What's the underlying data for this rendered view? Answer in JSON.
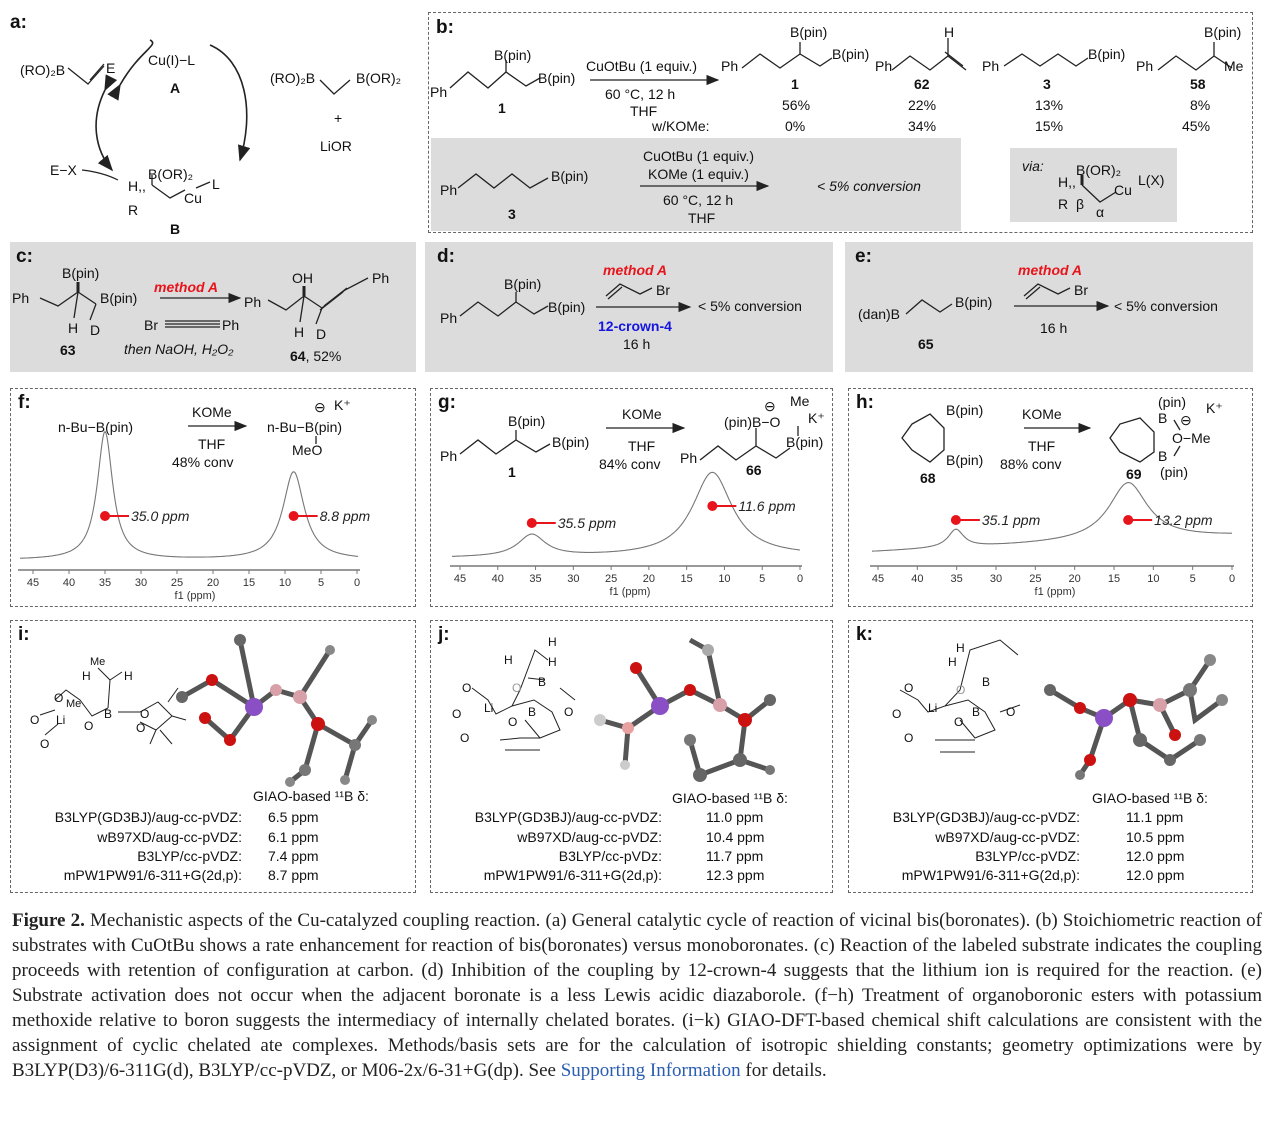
{
  "figure": {
    "panel_a": {
      "label": "a:",
      "t": [
        "(RO)₂B",
        "E",
        "Cu(I)−L",
        "A",
        "(RO)₂B",
        "B(OR)₂",
        "+",
        "LiOR",
        "E−X",
        "B(OR)₂",
        "H,,",
        "Cu",
        "L",
        "R",
        "B"
      ]
    },
    "panel_b": {
      "label": "b:",
      "start": {
        "ph": "Ph",
        "bpin1": "B(pin)",
        "bpin2": "B(pin)",
        "num": "1"
      },
      "reagent": "CuOtBu (1 equiv.)",
      "cond1": "60 °C, 12 h",
      "cond2": "THF",
      "products": [
        {
          "ph": "Ph",
          "sub1": "B(pin)",
          "sub2": "B(pin)",
          "num": "1",
          "yield": "56%",
          "yield_komE": "0%"
        },
        {
          "ph": "Ph",
          "sub1": "H",
          "num": "62",
          "yield": "22%",
          "yield_komE": "34%"
        },
        {
          "ph": "Ph",
          "sub1": "B(pin)",
          "num": "3",
          "yield": "13%",
          "yield_komE": "15%"
        },
        {
          "ph": "Ph",
          "sub1": "B(pin)",
          "sub2": "Me",
          "num": "58",
          "yield": "8%",
          "yield_komE": "45%"
        }
      ],
      "komE_label": "w/KOMe:",
      "control": {
        "ph": "Ph",
        "bpin": "B(pin)",
        "num": "3",
        "r1": "CuOtBu (1 equiv.)",
        "r2": "KOMe (1 equiv.)",
        "c1": "60 °C, 12 h",
        "c2": "THF",
        "result": "< 5% conversion"
      },
      "via": {
        "label": "via:",
        "bor": "B(OR)₂",
        "h": "H,,",
        "cu": "Cu",
        "lx": "L(X)",
        "r": "R",
        "beta": "β",
        "alpha": "α"
      }
    },
    "panel_c": {
      "label": "c:",
      "t": [
        "B(pin)",
        "Ph",
        "B(pin)",
        "H",
        "D",
        "63",
        "method A",
        "Br",
        "Ph",
        "then NaOH, H₂O₂",
        "OH",
        "Ph",
        "Ph",
        "H",
        "D",
        "64",
        "52%"
      ]
    },
    "panel_d": {
      "label": "d:",
      "t": [
        "B(pin)",
        "B(pin)",
        "Ph",
        "method A",
        "Br",
        "12-crown-4",
        "16 h",
        "< 5% conversion"
      ]
    },
    "panel_e": {
      "label": "e:",
      "t": [
        "(dan)B",
        "B(pin)",
        "65",
        "method A",
        "Br",
        "16 h",
        "< 5% conversion"
      ]
    },
    "panel_f": {
      "label": "f:",
      "t": [
        "n-Bu−B(pin)",
        "KOMe",
        "THF",
        "48%  conv",
        "⊖",
        "K⁺",
        "n-Bu−B(pin)",
        "MeO"
      ]
    },
    "panel_g": {
      "label": "g:",
      "t": [
        "B(pin)",
        "B(pin)",
        "Ph",
        "1",
        "KOMe",
        "THF",
        "84%  conv",
        "⊖",
        "Me",
        "(pin)B−O",
        "K⁺",
        "B(pin)",
        "Ph",
        "66"
      ]
    },
    "panel_h": {
      "label": "h:",
      "t": [
        "B(pin)",
        "B(pin)",
        "68",
        "KOMe",
        "THF",
        "88%  conv",
        "(pin)",
        "K⁺",
        "B",
        "⊖",
        "O−Me",
        "B",
        "(pin)",
        "69"
      ]
    },
    "panel_i": {
      "label": "i:",
      "t": [
        "Me",
        "H",
        "H",
        "O",
        "Me",
        "O",
        "O",
        "Li",
        "O",
        "B",
        "O",
        "O"
      ],
      "header": "GIAO-based ¹¹B δ:",
      "rows": [
        {
          "m": "B3LYP(GD3BJ)/aug-cc-pVDZ:",
          "v": "6.5 ppm"
        },
        {
          "m": "wB97XD/aug-cc-pVDZ:",
          "v": "6.1 ppm"
        },
        {
          "m": "B3LYP/cc-pVDZ:",
          "v": "7.4 ppm"
        },
        {
          "m": "mPW1PW91/6-311+G(2d,p):",
          "v": "8.7 ppm"
        }
      ]
    },
    "panel_j": {
      "label": "j:",
      "t": [
        "H",
        "H",
        "H",
        "O",
        "O",
        "B",
        "O",
        "Li",
        "O",
        "O",
        "B",
        "O"
      ],
      "header": "GIAO-based ¹¹B δ:",
      "rows": [
        {
          "m": "B3LYP(GD3BJ)/aug-cc-pVDZ:",
          "v": "11.0 ppm"
        },
        {
          "m": "wB97XD/aug-cc-pVDZ:",
          "v": "10.4 ppm"
        },
        {
          "m": "B3LYP/cc-pVDz:",
          "v": "11.7 ppm"
        },
        {
          "m": "mPW1PW91/6-311+G(2d,p):",
          "v": "12.3 ppm"
        }
      ]
    },
    "panel_k": {
      "label": "k:",
      "t": [
        "H",
        "H",
        "O",
        "O",
        "B",
        "O",
        "Li",
        "O",
        "O",
        "B",
        "O"
      ],
      "header": "GIAO-based ¹¹B δ:",
      "rows": [
        {
          "m": "B3LYP(GD3BJ)/aug-cc-pVDZ:",
          "v": "11.1 ppm"
        },
        {
          "m": "wB97XD/aug-cc-pVDZ:",
          "v": "10.5 ppm"
        },
        {
          "m": "B3LYP/cc-pVDZ:",
          "v": "12.0 ppm"
        },
        {
          "m": "mPW1PW91/6-311+G(2d,p):",
          "v": "12.0 ppm"
        }
      ]
    }
  },
  "chart_data": [
    {
      "type": "line",
      "panel": "f",
      "xlabel": "f1 (ppm)",
      "xlim": [
        45,
        0
      ],
      "x_ticks": [
        45,
        40,
        35,
        30,
        25,
        20,
        15,
        10,
        5,
        0
      ],
      "grid": false,
      "peaks": [
        {
          "ppm": 35.0,
          "label": "35.0 ppm"
        },
        {
          "ppm": 8.8,
          "label": "8.8 ppm"
        }
      ],
      "marker_color": "#e8141b"
    },
    {
      "type": "line",
      "panel": "g",
      "xlabel": "f1 (ppm)",
      "xlim": [
        45,
        0
      ],
      "x_ticks": [
        45,
        40,
        35,
        30,
        25,
        20,
        15,
        10,
        5,
        0
      ],
      "grid": false,
      "peaks": [
        {
          "ppm": 35.5,
          "label": "35.5 ppm"
        },
        {
          "ppm": 11.6,
          "label": "11.6 ppm"
        }
      ],
      "marker_color": "#e8141b"
    },
    {
      "type": "line",
      "panel": "h",
      "xlabel": "f1 (ppm)",
      "xlim": [
        45,
        0
      ],
      "x_ticks": [
        45,
        40,
        35,
        30,
        25,
        20,
        15,
        10,
        5,
        0
      ],
      "grid": false,
      "peaks": [
        {
          "ppm": 35.1,
          "label": "35.1 ppm"
        },
        {
          "ppm": 13.2,
          "label": "13.2 ppm"
        }
      ],
      "marker_color": "#e8141b"
    }
  ],
  "caption": {
    "figure_label": "Figure 2.",
    "text": " Mechanistic aspects of the Cu-catalyzed coupling reaction. (a) General catalytic cycle of reaction of vicinal bis(boronates). (b) Stoichiometric reaction of substrates with CuOtBu shows a rate enhancement for reaction of bis(boronates) versus monoboronates. (c) Reaction of the labeled substrate indicates the coupling proceeds with retention of configuration at carbon. (d) Inhibition of the coupling by 12-crown-4 suggests that the lithium ion is required for the reaction. (e) Substrate activation does not occur when the adjacent boronate is a less Lewis acidic diazaborole. (f−h) Treatment of organoboronic esters with potassium methoxide relative to boron suggests the intermediacy of internally chelated borates. (i−k) GIAO-DFT-based chemical shift calculations are consistent with the assignment of cyclic chelated ate complexes. Methods/basis sets are for the calculation of isotropic shielding constants; geometry optimizations were by B3LYP(D3)/6-311G(d), B3LYP/cc-pVDZ, or M06-2x/6-31+G(dp). See ",
    "link": "Supporting Information",
    "tail": " for details."
  }
}
